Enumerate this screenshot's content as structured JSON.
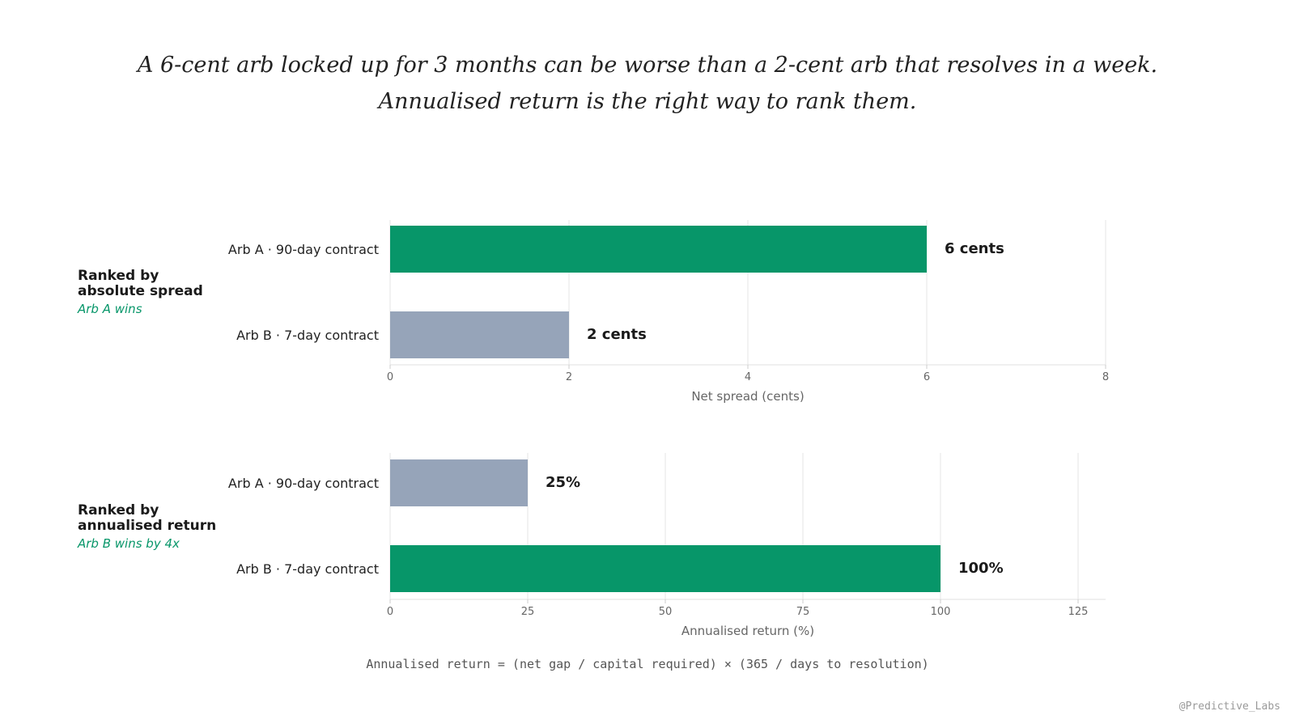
{
  "headline": {
    "line1": "A 6-cent arb locked up for 3 months can be worse than a 2-cent arb that resolves in a week.",
    "line2": "Annualised return is the right way to rank them."
  },
  "panels": [
    {
      "title_line1": "Ranked by",
      "title_line2": "absolute spread",
      "subtitle": "Arb A wins"
    },
    {
      "title_line1": "Ranked by",
      "title_line2": "annualised return",
      "subtitle": "Arb B wins by 4x"
    }
  ],
  "formula": "Annualised return = (net gap / capital required) × (365 / days to resolution)",
  "credit": "@Predictive_Labs",
  "colors": {
    "highlight": "#079669",
    "muted": "#96a4b9",
    "grid": "#e6e6e6"
  },
  "chart_data": [
    {
      "type": "bar",
      "orientation": "horizontal",
      "categories": [
        "Arb A · 90-day contract",
        "Arb B · 7-day contract"
      ],
      "values": [
        6,
        2
      ],
      "value_labels": [
        "6 cents",
        "2 cents"
      ],
      "highlight": [
        true,
        false
      ],
      "xlabel": "Net spread (cents)",
      "xlim": [
        0,
        8
      ],
      "xticks": [
        0,
        2,
        4,
        6,
        8
      ],
      "grid": true
    },
    {
      "type": "bar",
      "orientation": "horizontal",
      "categories": [
        "Arb A · 90-day contract",
        "Arb B · 7-day contract"
      ],
      "values": [
        25,
        100
      ],
      "value_labels": [
        "25%",
        "100%"
      ],
      "highlight": [
        false,
        true
      ],
      "xlabel": "Annualised return (%)",
      "xlim": [
        0,
        130
      ],
      "xticks": [
        0,
        25,
        50,
        75,
        100,
        125
      ],
      "grid": true
    }
  ]
}
